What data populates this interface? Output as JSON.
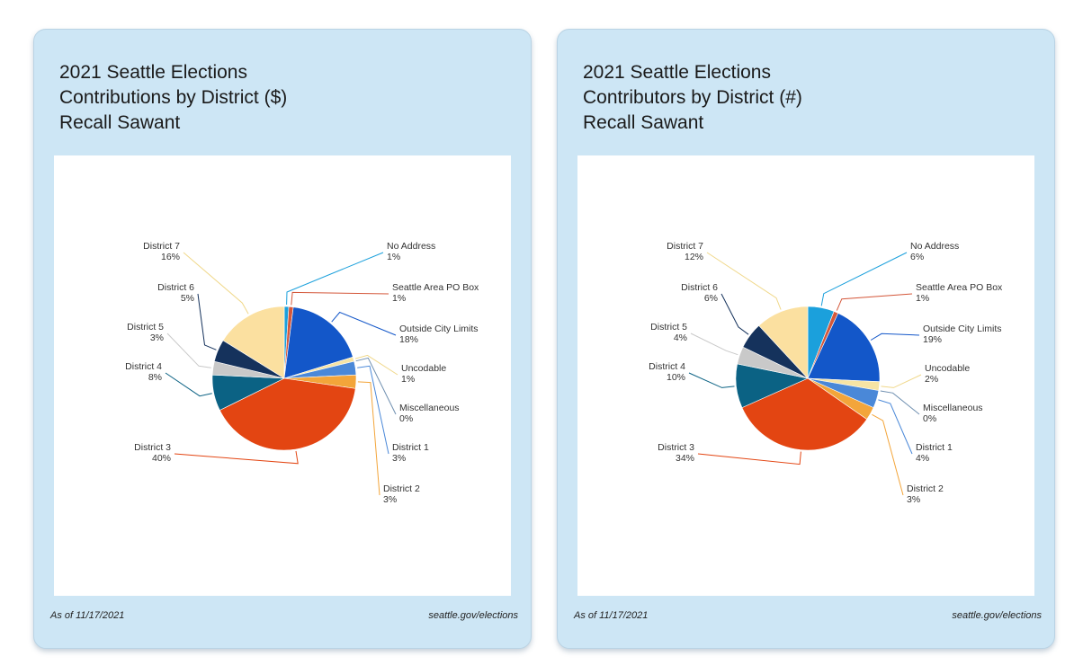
{
  "footer": {
    "date": "As of 11/17/2021",
    "site": "seattle.gov/elections"
  },
  "chart_data": [
    {
      "type": "pie",
      "title": [
        "2021 Seattle Elections",
        "Contributions by District ($)",
        "Recall Sawant"
      ],
      "slices": [
        {
          "name": "No Address",
          "value": 1,
          "label": "1%",
          "color": "#1ba0dc"
        },
        {
          "name": "Seattle Area PO Box",
          "value": 1,
          "label": "1%",
          "color": "#d4573a"
        },
        {
          "name": "Outside City Limits",
          "value": 18,
          "label": "18%",
          "color": "#1357c9"
        },
        {
          "name": "Uncodable",
          "value": 1,
          "label": "1%",
          "color": "#f6e4a4"
        },
        {
          "name": "Miscellaneous",
          "value": 0,
          "label": "0%",
          "color": "#6f8fb0"
        },
        {
          "name": "District 1",
          "value": 3,
          "label": "3%",
          "color": "#4a88d8"
        },
        {
          "name": "District 2",
          "value": 3,
          "label": "3%",
          "color": "#f3a53a"
        },
        {
          "name": "District 3",
          "value": 40,
          "label": "40%",
          "color": "#e34512"
        },
        {
          "name": "District 4",
          "value": 8,
          "label": "8%",
          "color": "#0b6284"
        },
        {
          "name": "District 5",
          "value": 3,
          "label": "3%",
          "color": "#c9c9c9"
        },
        {
          "name": "District 6",
          "value": 5,
          "label": "5%",
          "color": "#15325c"
        },
        {
          "name": "District 7",
          "value": 16,
          "label": "16%",
          "color": "#fbe0a0"
        }
      ]
    },
    {
      "type": "pie",
      "title": [
        "2021 Seattle Elections",
        "Contributors by District (#)",
        "Recall Sawant"
      ],
      "slices": [
        {
          "name": "No Address",
          "value": 6,
          "label": "6%",
          "color": "#1ba0dc"
        },
        {
          "name": "Seattle Area PO Box",
          "value": 1,
          "label": "1%",
          "color": "#d4573a"
        },
        {
          "name": "Outside City Limits",
          "value": 19,
          "label": "19%",
          "color": "#1357c9"
        },
        {
          "name": "Uncodable",
          "value": 2,
          "label": "2%",
          "color": "#f6e4a4"
        },
        {
          "name": "Miscellaneous",
          "value": 0,
          "label": "0%",
          "color": "#6f8fb0"
        },
        {
          "name": "District 1",
          "value": 4,
          "label": "4%",
          "color": "#4a88d8"
        },
        {
          "name": "District 2",
          "value": 3,
          "label": "3%",
          "color": "#f3a53a"
        },
        {
          "name": "District 3",
          "value": 34,
          "label": "34%",
          "color": "#e34512"
        },
        {
          "name": "District 4",
          "value": 10,
          "label": "10%",
          "color": "#0b6284"
        },
        {
          "name": "District 5",
          "value": 4,
          "label": "4%",
          "color": "#c9c9c9"
        },
        {
          "name": "District 6",
          "value": 6,
          "label": "6%",
          "color": "#15325c"
        },
        {
          "name": "District 7",
          "value": 12,
          "label": "12%",
          "color": "#fbe0a0"
        }
      ]
    }
  ]
}
